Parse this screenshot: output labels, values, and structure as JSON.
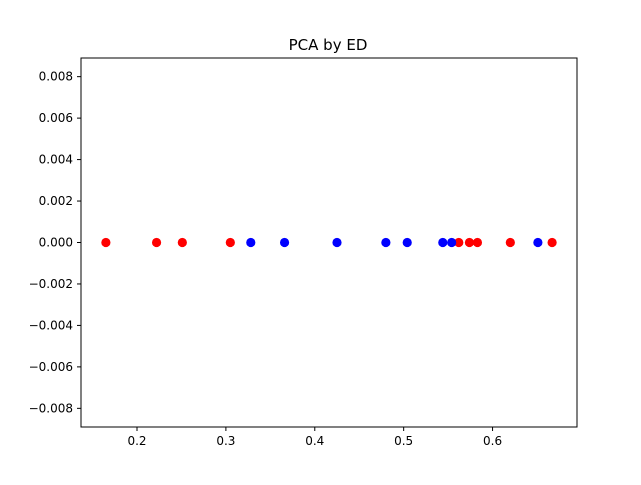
{
  "chart_data": {
    "type": "scatter",
    "title": "PCA by ED",
    "xlabel": "",
    "ylabel": "",
    "xlim": [
      0.137,
      0.695
    ],
    "ylim": [
      -0.0089,
      0.0089
    ],
    "xticks": [
      0.2,
      0.3,
      0.4,
      0.5,
      0.6
    ],
    "xtick_labels": [
      "0.2",
      "0.3",
      "0.4",
      "0.5",
      "0.6"
    ],
    "yticks": [
      0.008,
      0.006,
      0.004,
      0.002,
      0.0,
      -0.002,
      -0.004,
      -0.006,
      -0.008
    ],
    "ytick_labels": [
      "0.008",
      "0.006",
      "0.004",
      "0.002",
      "0.000",
      "−0.002",
      "−0.004",
      "−0.006",
      "−0.008"
    ],
    "grid": false,
    "series": [
      {
        "name": "red",
        "color": "#ff0000",
        "x": [
          0.165,
          0.222,
          0.251,
          0.305,
          0.562,
          0.574,
          0.583,
          0.62,
          0.667
        ],
        "y": [
          0,
          0,
          0,
          0,
          0,
          0,
          0,
          0,
          0
        ]
      },
      {
        "name": "blue",
        "color": "#0000ff",
        "x": [
          0.328,
          0.366,
          0.425,
          0.48,
          0.504,
          0.544,
          0.554,
          0.651
        ],
        "y": [
          0,
          0,
          0,
          0,
          0,
          0,
          0,
          0
        ]
      }
    ]
  }
}
